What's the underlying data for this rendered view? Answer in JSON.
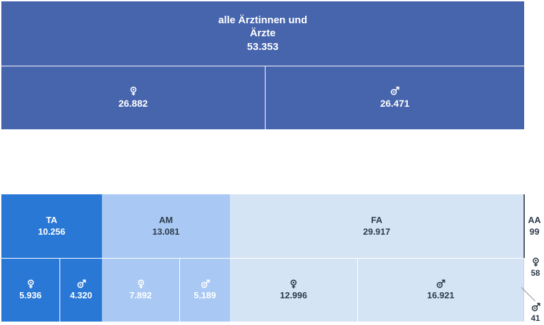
{
  "total": {
    "label_line1": "alle Ärztinnen und",
    "label_line2": "Ärzte",
    "value": "53.353"
  },
  "gender_totals": {
    "female_value": "26.882",
    "male_value": "26.471"
  },
  "categories": [
    {
      "key": "TA",
      "label": "TA",
      "value": "10.256",
      "female": "5.936",
      "male": "4.320"
    },
    {
      "key": "AM",
      "label": "AM",
      "value": "13.081",
      "female": "7.892",
      "male": "5.189"
    },
    {
      "key": "FA",
      "label": "FA",
      "value": "29.917",
      "female": "12.996",
      "male": "16.921"
    },
    {
      "key": "AA",
      "label": "AA",
      "value": "99",
      "female": "58",
      "male": "41"
    }
  ],
  "icons": {
    "female": "female-icon",
    "male": "male-icon"
  },
  "colors": {
    "total": "#4765ad",
    "TA": "#2a78d6",
    "AM": "#a9c9f4",
    "FA": "#d5e4f5",
    "text_dark": "#2f3b4a",
    "text_light": "#ffffff"
  }
}
